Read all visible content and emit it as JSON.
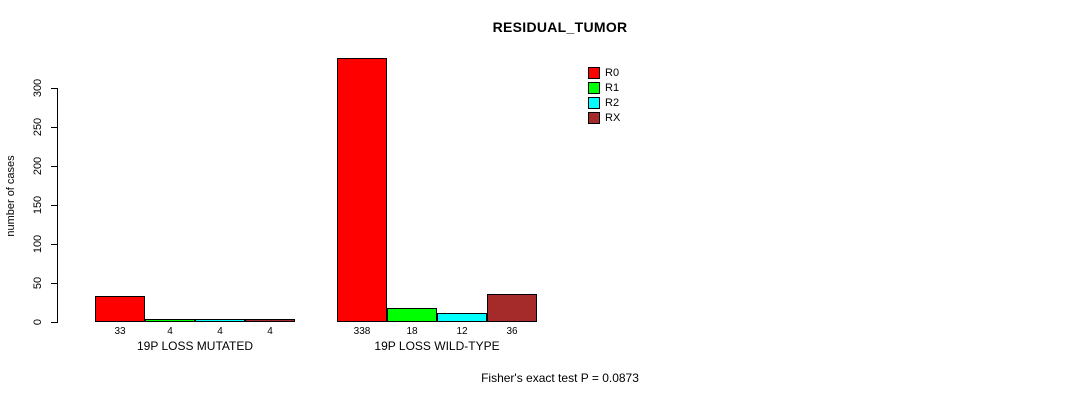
{
  "chart_data": {
    "type": "bar",
    "title": "RESIDUAL_TUMOR",
    "ylabel": "number of cases",
    "xlabel": "",
    "ylim": [
      0,
      300
    ],
    "yticks": [
      0,
      50,
      100,
      150,
      200,
      250,
      300
    ],
    "categories": [
      "19P LOSS MUTATED",
      "19P LOSS WILD-TYPE"
    ],
    "series": [
      {
        "name": "R0",
        "color": "#ff0000",
        "values": [
          33,
          338
        ]
      },
      {
        "name": "R1",
        "color": "#00ff00",
        "values": [
          4,
          18
        ]
      },
      {
        "name": "R2",
        "color": "#00ffff",
        "values": [
          4,
          12
        ]
      },
      {
        "name": "RX",
        "color": "#a52a2a",
        "values": [
          4,
          36
        ]
      }
    ],
    "bar_value_labels": [
      [
        "33",
        "4",
        "4",
        "4"
      ],
      [
        "338",
        "18",
        "12",
        "36"
      ]
    ],
    "legend_position": "top-right",
    "grid": false,
    "annotation": "Fisher's exact test P = 0.0873"
  }
}
